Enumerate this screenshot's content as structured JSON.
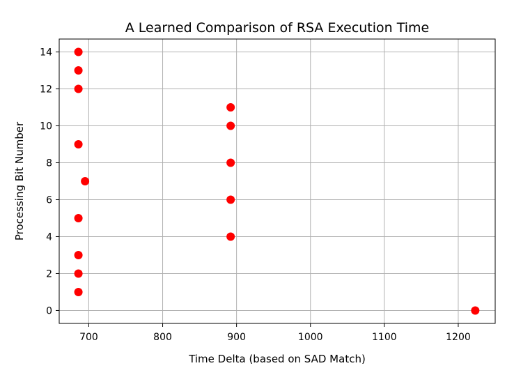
{
  "chart_data": {
    "type": "scatter",
    "title": "A Learned Comparison of RSA Execution Time",
    "xlabel": "Time Delta (based on SAD Match)",
    "ylabel": "Processing Bit Number",
    "xlim": [
      660,
      1250
    ],
    "ylim": [
      -0.7,
      14.7
    ],
    "xticks": [
      700,
      800,
      900,
      1000,
      1100,
      1200
    ],
    "yticks": [
      0,
      2,
      4,
      6,
      8,
      10,
      12,
      14
    ],
    "grid": true,
    "marker_color": "#ff0000",
    "points": [
      {
        "x": 1223,
        "y": 0
      },
      {
        "x": 686,
        "y": 1
      },
      {
        "x": 686,
        "y": 2
      },
      {
        "x": 686,
        "y": 3
      },
      {
        "x": 892,
        "y": 4
      },
      {
        "x": 686,
        "y": 5
      },
      {
        "x": 892,
        "y": 6
      },
      {
        "x": 695,
        "y": 7
      },
      {
        "x": 892,
        "y": 8
      },
      {
        "x": 686,
        "y": 9
      },
      {
        "x": 892,
        "y": 10
      },
      {
        "x": 892,
        "y": 11
      },
      {
        "x": 686,
        "y": 12
      },
      {
        "x": 686,
        "y": 13
      },
      {
        "x": 686,
        "y": 14
      }
    ]
  }
}
